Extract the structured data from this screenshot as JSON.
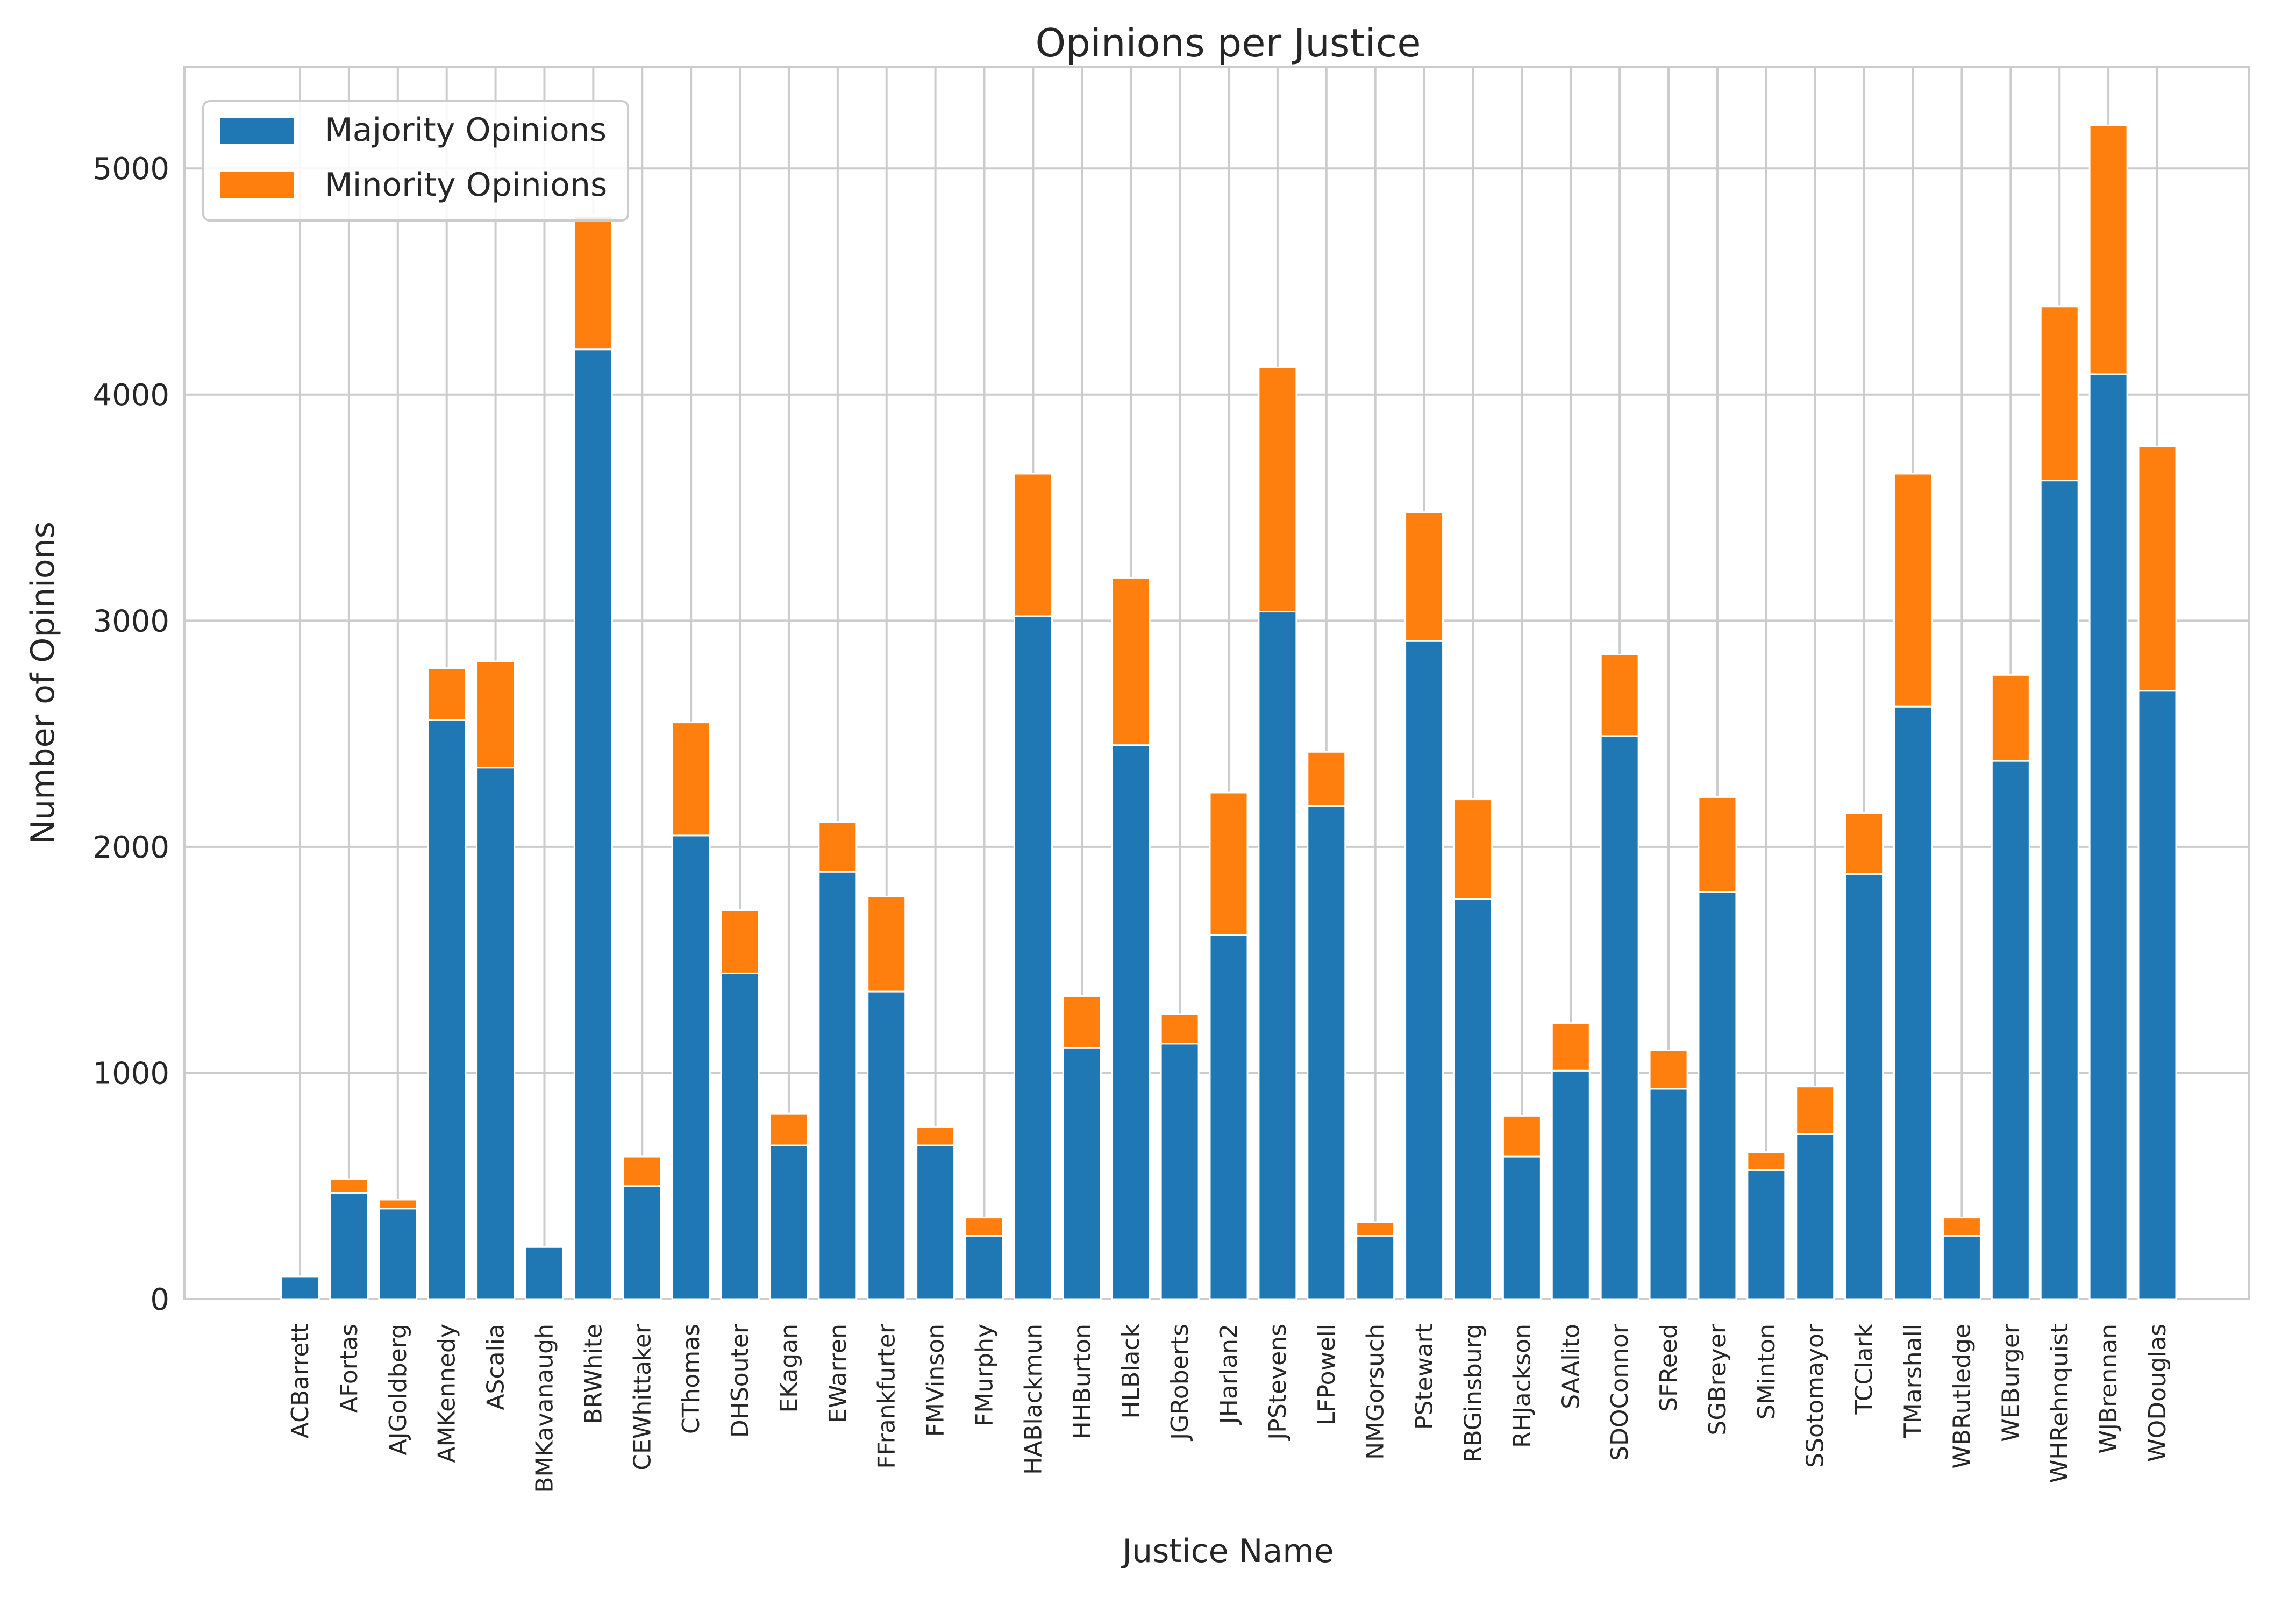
{
  "chart_data": {
    "type": "bar",
    "stacked": true,
    "title": "Opinions per Justice",
    "xlabel": "Justice Name",
    "ylabel": "Number of Opinions",
    "ylim": [
      0,
      5450
    ],
    "yticks": [
      0,
      1000,
      2000,
      3000,
      4000,
      5000
    ],
    "grid": true,
    "legend_position": "top-left",
    "categories": [
      "ACBarrett",
      "AFortas",
      "AJGoldberg",
      "AMKennedy",
      "AScalia",
      "BMKavanaugh",
      "BRWhite",
      "CEWhittaker",
      "CThomas",
      "DHSouter",
      "EKagan",
      "EWarren",
      "FFrankfurter",
      "FMVinson",
      "FMurphy",
      "HABlackmun",
      "HHBurton",
      "HLBlack",
      "JGRoberts",
      "JHarlan2",
      "JPStevens",
      "LFPowell",
      "NMGorsuch",
      "PStewart",
      "RBGinsburg",
      "RHJackson",
      "SAAlito",
      "SDOConnor",
      "SFReed",
      "SGBreyer",
      "SMinton",
      "SSotomayor",
      "TCClark",
      "TMarshall",
      "WBRutledge",
      "WEBurger",
      "WHRehnquist",
      "WJBrennan",
      "WODouglas"
    ],
    "series": [
      {
        "name": "Majority Opinions",
        "color": "#1f77b4",
        "values": [
          100,
          470,
          400,
          2560,
          2350,
          230,
          4200,
          500,
          2050,
          1440,
          680,
          1890,
          1360,
          680,
          280,
          3020,
          1110,
          2450,
          1130,
          1610,
          3040,
          2180,
          280,
          2910,
          1770,
          630,
          1010,
          2490,
          930,
          1800,
          570,
          730,
          1880,
          2620,
          280,
          2380,
          3620,
          4090,
          2690
        ]
      },
      {
        "name": "Minority Opinions",
        "color": "#ff7f0e",
        "values": [
          0,
          60,
          40,
          230,
          470,
          0,
          590,
          130,
          500,
          280,
          140,
          220,
          420,
          80,
          80,
          630,
          230,
          740,
          130,
          630,
          1080,
          240,
          60,
          570,
          440,
          180,
          210,
          360,
          170,
          420,
          80,
          210,
          270,
          1030,
          80,
          380,
          770,
          1100,
          1080
        ]
      }
    ]
  }
}
